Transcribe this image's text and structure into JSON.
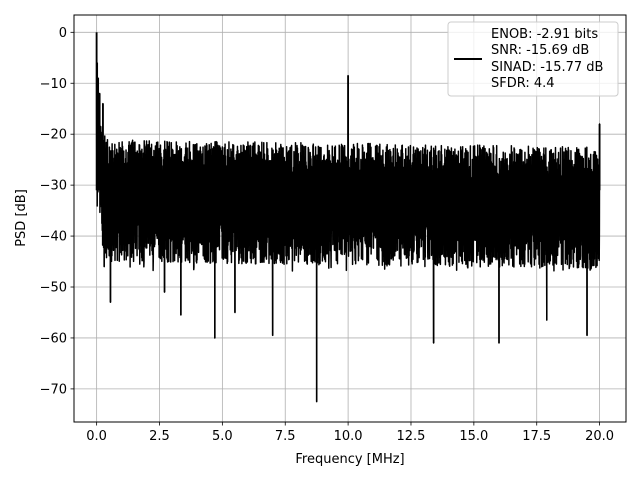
{
  "chart_data": {
    "type": "line",
    "title": "",
    "xlabel": "Frequency [MHz]",
    "ylabel": "PSD [dB]",
    "xlim": [
      -0.9,
      21.05
    ],
    "ylim": [
      -76.5,
      3.4
    ],
    "xticks": [
      0.0,
      2.5,
      5.0,
      7.5,
      10.0,
      12.5,
      15.0,
      17.5,
      20.0
    ],
    "xtick_labels": [
      "0.0",
      "2.5",
      "5.0",
      "7.5",
      "10.0",
      "12.5",
      "15.0",
      "17.5",
      "20.0"
    ],
    "yticks": [
      0,
      -10,
      -20,
      -30,
      -40,
      -50,
      -60,
      -70
    ],
    "ytick_labels": [
      "0",
      "−10",
      "−20",
      "−30",
      "−40",
      "−50",
      "−60",
      "−70"
    ],
    "grid": true,
    "legend_position": "top-right",
    "series": [
      {
        "name": "ENOB: -2.91 bits\nSNR: -15.69 dB\nSINAD: -15.77 dB\nSFDR: 4.4",
        "legend_lines": [
          "ENOB: -2.91 bits",
          "SNR: -15.69 dB",
          "SINAD: -15.77 dB",
          "SFDR: 4.4"
        ],
        "color": "#000000",
        "x_range": [
          0,
          20
        ],
        "noise_floor_mean_db": -31,
        "noise_upper_envelope_db": -21,
        "noise_lower_envelope_db": -45,
        "peaks": [
          {
            "x": 0.0,
            "y": 0.0
          },
          {
            "x": 0.02,
            "y": -6
          },
          {
            "x": 0.06,
            "y": -9
          },
          {
            "x": 0.12,
            "y": -12
          },
          {
            "x": 0.25,
            "y": -14
          },
          {
            "x": 10.0,
            "y": -8.5
          },
          {
            "x": 20.0,
            "y": -18
          }
        ],
        "dips": [
          {
            "x": 0.3,
            "y": -46
          },
          {
            "x": 0.55,
            "y": -53
          },
          {
            "x": 2.7,
            "y": -51
          },
          {
            "x": 3.35,
            "y": -55.5
          },
          {
            "x": 4.7,
            "y": -60
          },
          {
            "x": 5.5,
            "y": -55
          },
          {
            "x": 7.0,
            "y": -59.5
          },
          {
            "x": 8.75,
            "y": -72.5
          },
          {
            "x": 13.4,
            "y": -61
          },
          {
            "x": 16.0,
            "y": -61
          },
          {
            "x": 17.9,
            "y": -56.5
          },
          {
            "x": 19.5,
            "y": -59.5
          }
        ]
      }
    ]
  }
}
